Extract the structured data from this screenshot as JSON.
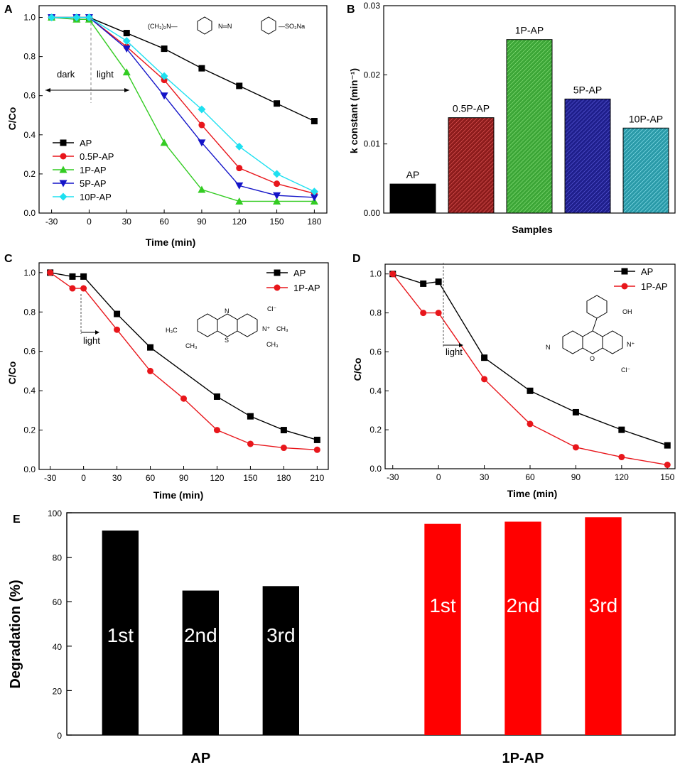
{
  "colors": {
    "AP": "#000000",
    "P05": "#e8161b",
    "P1": "#33cc22",
    "P5": "#1414c8",
    "P10": "#1ee0f0",
    "B_AP": "#000000",
    "B_05": "#8c1c1c",
    "B_1": "#3ca637",
    "B_5": "#1f1f8c",
    "B_10": "#2a9aa8",
    "E_1P": "#ff0000"
  },
  "chart_data": [
    {
      "id": "A",
      "panel_label": "A",
      "type": "line",
      "xlabel": "Time (min)",
      "ylabel": "C/Co",
      "xlim": [
        -40,
        190
      ],
      "ylim": [
        0,
        1.06
      ],
      "xticks": [
        -30,
        0,
        30,
        60,
        90,
        120,
        150,
        180
      ],
      "yticks": [
        0.0,
        0.2,
        0.4,
        0.6,
        0.8,
        1.0
      ],
      "ytick_labels": [
        "0.0",
        "0.2",
        "0.4",
        "0.6",
        "0.8",
        "1.0"
      ],
      "legend_position": "bottom-left",
      "annotations": {
        "dark": "dark",
        "light": "light",
        "molecule_left": "(CH₃)₂N—",
        "molecule_mid": "N═N",
        "molecule_right": "—SO₃Na"
      },
      "series": [
        {
          "name": "AP",
          "marker": "square",
          "color_key": "AP",
          "x": [
            -30,
            -10,
            0,
            30,
            60,
            90,
            120,
            150,
            180
          ],
          "y": [
            1.0,
            1.0,
            1.0,
            0.92,
            0.84,
            0.74,
            0.65,
            0.56,
            0.47
          ]
        },
        {
          "name": "0.5P-AP",
          "marker": "circle",
          "color_key": "P05",
          "x": [
            -30,
            -10,
            0,
            30,
            60,
            90,
            120,
            150,
            180
          ],
          "y": [
            1.0,
            1.0,
            1.0,
            0.85,
            0.68,
            0.45,
            0.23,
            0.15,
            0.1
          ]
        },
        {
          "name": "1P-AP",
          "marker": "triangle-up",
          "color_key": "P1",
          "x": [
            -30,
            -10,
            0,
            30,
            60,
            90,
            120,
            150,
            180
          ],
          "y": [
            1.0,
            0.99,
            0.99,
            0.72,
            0.36,
            0.12,
            0.06,
            0.06,
            0.06
          ]
        },
        {
          "name": "5P-AP",
          "marker": "triangle-down",
          "color_key": "P5",
          "x": [
            -30,
            -10,
            0,
            30,
            60,
            90,
            120,
            150,
            180
          ],
          "y": [
            1.0,
            1.0,
            1.0,
            0.84,
            0.6,
            0.36,
            0.14,
            0.09,
            0.08
          ]
        },
        {
          "name": "10P-AP",
          "marker": "diamond",
          "color_key": "P10",
          "x": [
            -30,
            -10,
            0,
            30,
            60,
            90,
            120,
            150,
            180
          ],
          "y": [
            1.0,
            1.0,
            1.0,
            0.88,
            0.7,
            0.53,
            0.34,
            0.2,
            0.11
          ]
        }
      ]
    },
    {
      "id": "B",
      "panel_label": "B",
      "type": "bar",
      "xlabel": "Samples",
      "ylabel": "k constant (min⁻¹)",
      "ylim": [
        0,
        0.03
      ],
      "yticks": [
        0.0,
        0.01,
        0.02,
        0.03
      ],
      "ytick_labels": [
        "0.00",
        "0.01",
        "0.02",
        "0.03"
      ],
      "categories": [
        "AP",
        "0.5P-AP",
        "1P-AP",
        "5P-AP",
        "10P-AP"
      ],
      "values": [
        0.0042,
        0.0138,
        0.0251,
        0.0165,
        0.0123
      ],
      "color_keys": [
        "B_AP",
        "B_05",
        "B_1",
        "B_5",
        "B_10"
      ]
    },
    {
      "id": "C",
      "panel_label": "C",
      "type": "line",
      "xlabel": "Time (min)",
      "ylabel": "C/Co",
      "xlim": [
        -40,
        220
      ],
      "ylim": [
        0,
        1.05
      ],
      "xticks": [
        -30,
        0,
        30,
        60,
        90,
        120,
        150,
        180,
        210
      ],
      "yticks": [
        0.0,
        0.2,
        0.4,
        0.6,
        0.8,
        1.0
      ],
      "ytick_labels": [
        "0.0",
        "0.2",
        "0.4",
        "0.6",
        "0.8",
        "1.0"
      ],
      "legend_position": "top-right",
      "annotations": {
        "light": "light",
        "mol_left": "H₃C",
        "mol_N": "N",
        "mol_CH3": "CH₃",
        "mol_S": "S",
        "mol_Nplus": "N⁺",
        "mol_CH3b": "CH₃",
        "mol_CH3c": "CH₃",
        "mol_Cl": "Cl⁻"
      },
      "series": [
        {
          "name": "AP",
          "marker": "square",
          "color_key": "AP",
          "x": [
            -30,
            -10,
            0,
            30,
            60,
            120,
            150,
            180,
            210
          ],
          "y": [
            1.0,
            0.98,
            0.98,
            0.79,
            0.62,
            0.37,
            0.27,
            0.2,
            0.15
          ]
        },
        {
          "name": "1P-AP",
          "marker": "circle",
          "color_key": "P05",
          "x": [
            -30,
            -10,
            0,
            30,
            60,
            90,
            120,
            150,
            180,
            210
          ],
          "y": [
            1.0,
            0.92,
            0.92,
            0.71,
            0.5,
            0.36,
            0.2,
            0.13,
            0.11,
            0.1
          ]
        }
      ]
    },
    {
      "id": "D",
      "panel_label": "D",
      "type": "line",
      "xlabel": "Time (min)",
      "ylabel": "C/Co",
      "xlim": [
        -35,
        155
      ],
      "ylim": [
        0,
        1.05
      ],
      "xticks": [
        -30,
        0,
        30,
        60,
        90,
        120,
        150
      ],
      "yticks": [
        0.0,
        0.2,
        0.4,
        0.6,
        0.8,
        1.0
      ],
      "ytick_labels": [
        "0.0",
        "0.2",
        "0.4",
        "0.6",
        "0.8",
        "1.0"
      ],
      "legend_position": "top-right",
      "annotations": {
        "light": "light",
        "mol_OH": "OH",
        "mol_Cl": "Cl⁻",
        "mol_O": "O",
        "mol_N": "N",
        "mol_Nplus": "N⁺"
      },
      "series": [
        {
          "name": "AP",
          "marker": "square",
          "color_key": "AP",
          "x": [
            -30,
            -10,
            0,
            30,
            60,
            90,
            120,
            150
          ],
          "y": [
            1.0,
            0.95,
            0.96,
            0.57,
            0.4,
            0.29,
            0.2,
            0.12
          ]
        },
        {
          "name": "1P-AP",
          "marker": "circle",
          "color_key": "P05",
          "x": [
            -30,
            -10,
            0,
            30,
            60,
            90,
            120,
            150
          ],
          "y": [
            1.0,
            0.8,
            0.8,
            0.46,
            0.23,
            0.11,
            0.06,
            0.02
          ]
        }
      ]
    },
    {
      "id": "E",
      "panel_label": "E",
      "type": "bar",
      "xlabel": "",
      "ylabel": "Degradation (%)",
      "ylim": [
        0,
        100
      ],
      "yticks": [
        0,
        20,
        40,
        60,
        80,
        100
      ],
      "ytick_labels": [
        "0",
        "20",
        "40",
        "60",
        "80",
        "100"
      ],
      "groups": [
        "AP",
        "1P-AP"
      ],
      "bar_labels": [
        "1st",
        "2nd",
        "3rd"
      ],
      "series": [
        {
          "name": "AP",
          "color_key": "AP",
          "values": [
            92,
            65,
            67
          ]
        },
        {
          "name": "1P-AP",
          "color_key": "E_1P",
          "values": [
            95,
            96,
            98
          ]
        }
      ]
    }
  ]
}
